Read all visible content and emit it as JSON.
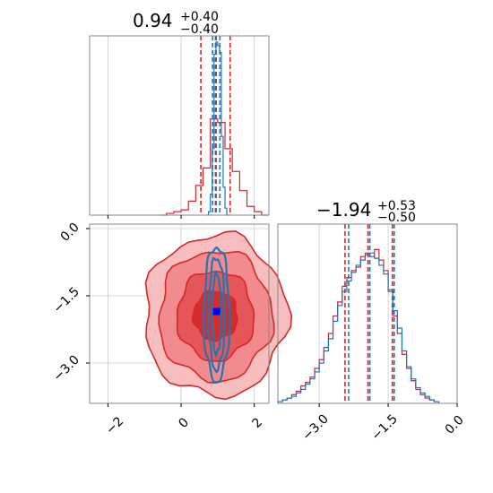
{
  "colors": {
    "series_a": "#d62728",
    "series_b": "#1f77b4",
    "truth": "#0000ff",
    "grid": "#cccccc",
    "frame": "#888888"
  },
  "chart_data": [
    {
      "type": "histogram",
      "panel": "top-left",
      "title": {
        "value": "0.94",
        "sup": "+0.40",
        "sub": "−0.40"
      },
      "xlim": [
        -2.5,
        2.4
      ],
      "xticks": [
        -2,
        0,
        2
      ],
      "grid": true,
      "series": [
        {
          "color": "red",
          "step": 0.2,
          "bins": [
            [
              -0.6,
              0
            ],
            [
              -0.4,
              0.01
            ],
            [
              -0.2,
              0.02
            ],
            [
              0.0,
              0.03
            ],
            [
              0.2,
              0.08
            ],
            [
              0.4,
              0.17
            ],
            [
              0.6,
              0.27
            ],
            [
              0.8,
              0.55
            ],
            [
              1.0,
              0.53
            ],
            [
              1.2,
              0.38
            ],
            [
              1.4,
              0.25
            ],
            [
              1.6,
              0.14
            ],
            [
              1.8,
              0.05
            ],
            [
              2.0,
              0.02
            ],
            [
              2.2,
              0.0
            ]
          ],
          "quantile_lines": [
            0.54,
            0.94,
            1.34
          ]
        },
        {
          "color": "blue",
          "step": 0.05,
          "bins": [
            [
              0.7,
              0
            ],
            [
              0.75,
              0.02
            ],
            [
              0.8,
              0.12
            ],
            [
              0.85,
              0.38
            ],
            [
              0.9,
              0.92
            ],
            [
              0.95,
              0.99
            ],
            [
              1.0,
              0.97
            ],
            [
              1.05,
              0.93
            ],
            [
              1.1,
              0.45
            ],
            [
              1.15,
              0.16
            ],
            [
              1.2,
              0.04
            ],
            [
              1.25,
              0.0
            ]
          ],
          "quantile_lines": [
            0.86,
            0.96,
            1.06
          ]
        }
      ]
    },
    {
      "type": "contour",
      "panel": "bottom-left",
      "xlim": [
        -2.5,
        2.4
      ],
      "ylim": [
        -3.9,
        0.1
      ],
      "xticks": [
        -2,
        0,
        2
      ],
      "yticks": [
        0.0,
        -1.5,
        -3.0
      ],
      "xtick_labels": [
        "−2",
        "0",
        "2"
      ],
      "ytick_labels": [
        "0.0",
        "−1.5",
        "−3.0"
      ],
      "grid": true,
      "truth_point": {
        "x": 0.97,
        "y": -1.85
      },
      "series": [
        {
          "color": "red",
          "center": [
            0.94,
            -1.94
          ],
          "levels": [
            [
              1.95,
              1.8
            ],
            [
              1.55,
              1.45
            ],
            [
              1.05,
              1.0
            ],
            [
              0.6,
              0.55
            ]
          ]
        },
        {
          "color": "blue",
          "center": [
            0.97,
            -1.9
          ],
          "levels": [
            [
              0.35,
              1.5
            ],
            [
              0.22,
              1.25
            ],
            [
              0.12,
              0.9
            ]
          ]
        }
      ]
    },
    {
      "type": "histogram",
      "panel": "bottom-right",
      "title": {
        "value": "−1.94",
        "sup": "+0.53",
        "sub": "−0.50"
      },
      "xlim": [
        -3.9,
        0.0
      ],
      "xticks": [
        -3.0,
        -1.5,
        0.0
      ],
      "xtick_labels": [
        "−3.0",
        "−1.5",
        "0.0"
      ],
      "grid": true,
      "series": [
        {
          "color": "red",
          "step": 0.1,
          "bins": [
            [
              -3.9,
              0.01
            ],
            [
              -3.8,
              0.02
            ],
            [
              -3.7,
              0.03
            ],
            [
              -3.6,
              0.05
            ],
            [
              -3.5,
              0.07
            ],
            [
              -3.4,
              0.1
            ],
            [
              -3.3,
              0.12
            ],
            [
              -3.2,
              0.15
            ],
            [
              -3.1,
              0.2
            ],
            [
              -3.0,
              0.25
            ],
            [
              -2.9,
              0.32
            ],
            [
              -2.8,
              0.4
            ],
            [
              -2.7,
              0.5
            ],
            [
              -2.6,
              0.58
            ],
            [
              -2.5,
              0.67
            ],
            [
              -2.4,
              0.72
            ],
            [
              -2.3,
              0.76
            ],
            [
              -2.2,
              0.78
            ],
            [
              -2.1,
              0.84
            ],
            [
              -2.0,
              0.86
            ],
            [
              -1.9,
              0.84
            ],
            [
              -1.8,
              0.88
            ],
            [
              -1.7,
              0.82
            ],
            [
              -1.6,
              0.76
            ],
            [
              -1.5,
              0.64
            ],
            [
              -1.4,
              0.5
            ],
            [
              -1.3,
              0.4
            ],
            [
              -1.2,
              0.28
            ],
            [
              -1.1,
              0.2
            ],
            [
              -1.0,
              0.13
            ],
            [
              -0.9,
              0.08
            ],
            [
              -0.8,
              0.05
            ],
            [
              -0.7,
              0.03
            ],
            [
              -0.6,
              0.02
            ],
            [
              -0.5,
              0.01
            ]
          ],
          "quantile_lines": [
            -2.44,
            -1.94,
            -1.41
          ]
        },
        {
          "color": "blue",
          "step": 0.1,
          "bins": [
            [
              -3.9,
              0.01
            ],
            [
              -3.8,
              0.02
            ],
            [
              -3.7,
              0.03
            ],
            [
              -3.6,
              0.04
            ],
            [
              -3.5,
              0.06
            ],
            [
              -3.4,
              0.08
            ],
            [
              -3.3,
              0.11
            ],
            [
              -3.2,
              0.14
            ],
            [
              -3.1,
              0.18
            ],
            [
              -3.0,
              0.23
            ],
            [
              -2.9,
              0.3
            ],
            [
              -2.8,
              0.37
            ],
            [
              -2.7,
              0.47
            ],
            [
              -2.6,
              0.56
            ],
            [
              -2.5,
              0.64
            ],
            [
              -2.4,
              0.7
            ],
            [
              -2.3,
              0.75
            ],
            [
              -2.2,
              0.79
            ],
            [
              -2.1,
              0.82
            ],
            [
              -2.0,
              0.85
            ],
            [
              -1.9,
              0.86
            ],
            [
              -1.8,
              0.83
            ],
            [
              -1.7,
              0.79
            ],
            [
              -1.6,
              0.74
            ],
            [
              -1.5,
              0.65
            ],
            [
              -1.4,
              0.53
            ],
            [
              -1.3,
              0.43
            ],
            [
              -1.2,
              0.3
            ],
            [
              -1.1,
              0.21
            ],
            [
              -1.0,
              0.14
            ],
            [
              -0.9,
              0.09
            ],
            [
              -0.8,
              0.06
            ],
            [
              -0.7,
              0.04
            ],
            [
              -0.6,
              0.02
            ],
            [
              -0.5,
              0.01
            ]
          ],
          "quantile_lines": [
            -2.36,
            -1.9,
            -1.37
          ]
        }
      ]
    }
  ]
}
